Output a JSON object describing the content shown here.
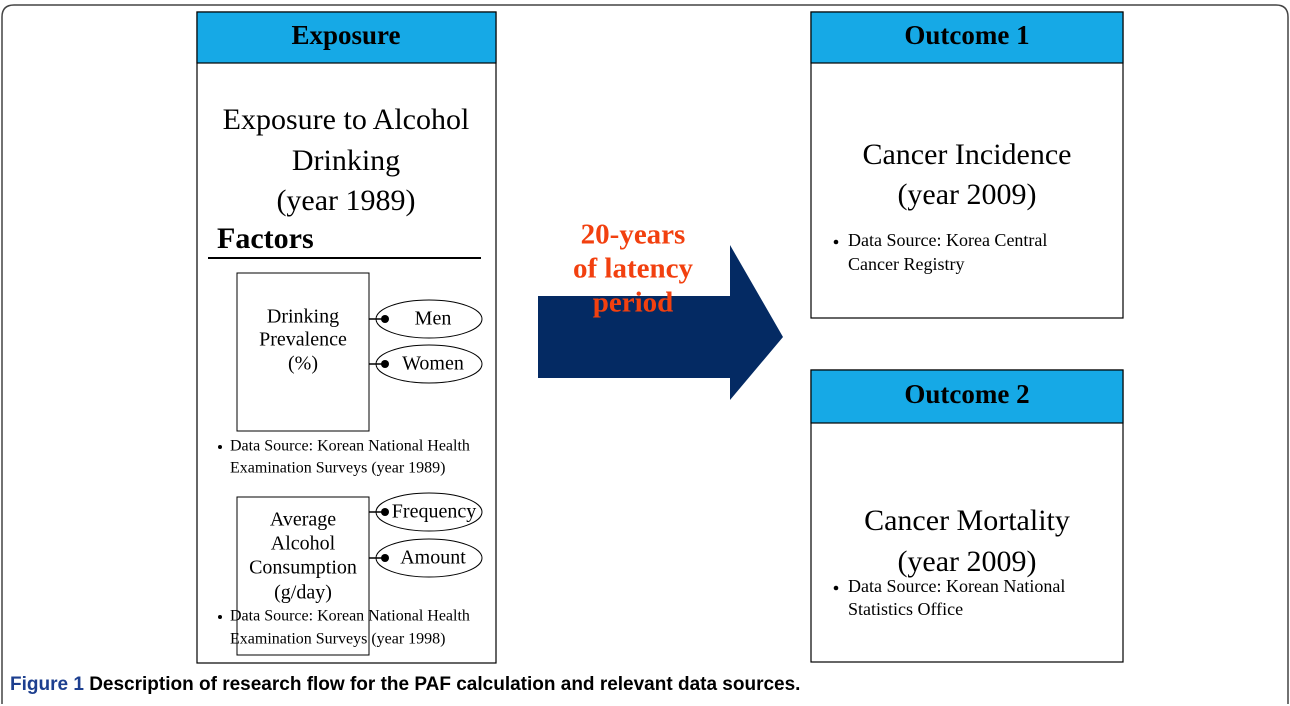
{
  "exposure": {
    "header": "Exposure",
    "title_lines": [
      "Exposure to Alcohol",
      "Drinking",
      "(year 1989)"
    ],
    "factors_heading": "Factors",
    "factor_groups": [
      {
        "label_lines": [
          "Drinking",
          "Prevalence",
          "(%)"
        ],
        "options": [
          "Men",
          "Women"
        ],
        "source_lines": [
          "Data Source: Korean National Health",
          "Examination Surveys (year 1989)"
        ]
      },
      {
        "label_lines": [
          "Average",
          "Alcohol",
          "Consumption",
          "(g/day)"
        ],
        "options": [
          "Frequency",
          "Amount"
        ],
        "source_lines": [
          "Data Source: Korean National Health",
          "Examination Surveys (year 1998)"
        ]
      }
    ]
  },
  "arrow": {
    "lines": [
      "20-years",
      "of latency",
      "period"
    ]
  },
  "outcomes": [
    {
      "header": "Outcome 1",
      "lines": [
        "Cancer Incidence",
        "(year 2009)"
      ],
      "source_lines": [
        "Data Source: Korea Central",
        "Cancer Registry"
      ]
    },
    {
      "header": "Outcome 2",
      "lines": [
        "Cancer Mortality",
        "(year 2009)"
      ],
      "source_lines": [
        "Data Source: Korean National",
        "Statistics Office"
      ]
    }
  ],
  "caption": {
    "label": "Figure 1",
    "text": "Description of research flow for the PAF calculation and relevant data sources."
  }
}
